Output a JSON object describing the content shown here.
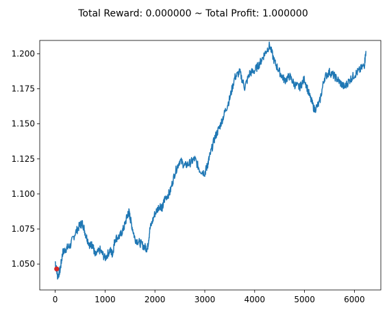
{
  "chart_data": {
    "type": "line",
    "title": "Total Reward: 0.000000 ~ Total Profit: 1.000000",
    "xlabel": "",
    "ylabel": "",
    "xlim": [
      -310,
      6530
    ],
    "ylim": [
      1.0315,
      1.2095
    ],
    "xticks": [
      0,
      1000,
      2000,
      3000,
      4000,
      5000,
      6000
    ],
    "xtick_labels": [
      "0",
      "1000",
      "2000",
      "3000",
      "4000",
      "5000",
      "6000"
    ],
    "yticks": [
      1.05,
      1.075,
      1.1,
      1.125,
      1.15,
      1.175,
      1.2
    ],
    "ytick_labels": [
      "1.050",
      "1.075",
      "1.100",
      "1.125",
      "1.150",
      "1.175",
      "1.200"
    ],
    "grid": false,
    "series": [
      {
        "color": "#1f77b4",
        "x": [
          0,
          50,
          100,
          150,
          220,
          300,
          400,
          500,
          550,
          620,
          700,
          750,
          800,
          900,
          1000,
          1100,
          1150,
          1200,
          1300,
          1380,
          1450,
          1480,
          1520,
          1600,
          1700,
          1800,
          1850,
          1900,
          2000,
          2100,
          2150,
          2200,
          2300,
          2400,
          2500,
          2600,
          2700,
          2800,
          2900,
          3000,
          3050,
          3100,
          3200,
          3300,
          3400,
          3500,
          3600,
          3700,
          3800,
          3900,
          4000,
          4100,
          4200,
          4300,
          4400,
          4500,
          4600,
          4700,
          4800,
          4900,
          5000,
          5100,
          5200,
          5300,
          5400,
          5500,
          5600,
          5700,
          5800,
          5900,
          6000,
          6100,
          6200,
          6230
        ],
        "y": [
          1.052,
          1.041,
          1.046,
          1.058,
          1.061,
          1.063,
          1.072,
          1.078,
          1.079,
          1.07,
          1.063,
          1.064,
          1.056,
          1.06,
          1.054,
          1.06,
          1.057,
          1.068,
          1.07,
          1.076,
          1.085,
          1.087,
          1.08,
          1.068,
          1.065,
          1.062,
          1.061,
          1.075,
          1.086,
          1.092,
          1.09,
          1.097,
          1.101,
          1.115,
          1.124,
          1.12,
          1.122,
          1.125,
          1.117,
          1.115,
          1.12,
          1.127,
          1.14,
          1.148,
          1.158,
          1.168,
          1.183,
          1.187,
          1.176,
          1.186,
          1.188,
          1.193,
          1.2,
          1.206,
          1.194,
          1.187,
          1.181,
          1.184,
          1.178,
          1.176,
          1.182,
          1.17,
          1.16,
          1.165,
          1.183,
          1.187,
          1.184,
          1.18,
          1.176,
          1.181,
          1.185,
          1.188,
          1.192,
          1.202
        ]
      }
    ],
    "markers": [
      {
        "x": 30,
        "y": 1.0465,
        "color": "#d62728"
      }
    ]
  }
}
